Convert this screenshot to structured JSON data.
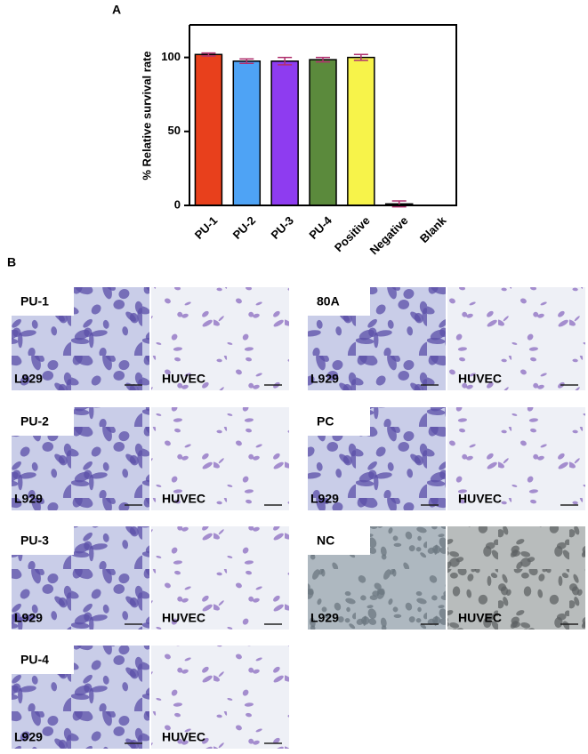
{
  "chart_data": {
    "type": "bar",
    "panel_label": "A",
    "y_label": "% Relative survival rate",
    "categories": [
      "PU-1",
      "PU-2",
      "PU-3",
      "PU-4",
      "Positive",
      "Negative",
      "Blank"
    ],
    "values": [
      102,
      97.5,
      97.5,
      98.5,
      100,
      1,
      0
    ],
    "errors": [
      1,
      1.5,
      2.5,
      1.5,
      2,
      2,
      0
    ],
    "colors": [
      "#e8401c",
      "#4ea3f5",
      "#8e3cf0",
      "#5b8a3c",
      "#f7f34a",
      "#f7f34a",
      "#f7f34a"
    ],
    "error_color": "#b0306e",
    "ylim": [
      0,
      122
    ],
    "yticks": [
      0,
      50,
      100
    ],
    "grid": false
  },
  "panel_b": {
    "label": "B",
    "groups": [
      {
        "name": "PU-1",
        "left": "L929",
        "right": "HUVEC"
      },
      {
        "name": "PU-2",
        "left": "L929",
        "right": "HUVEC"
      },
      {
        "name": "PU-3",
        "left": "L929",
        "right": "HUVEC"
      },
      {
        "name": "PU-4",
        "left": "L929",
        "right": "HUVEC"
      },
      {
        "name": "80A",
        "left": "L929",
        "right": "HUVEC"
      },
      {
        "name": "PC",
        "left": "L929",
        "right": "HUVEC"
      },
      {
        "name": "NC",
        "left": "L929",
        "right": "HUVEC"
      }
    ]
  }
}
